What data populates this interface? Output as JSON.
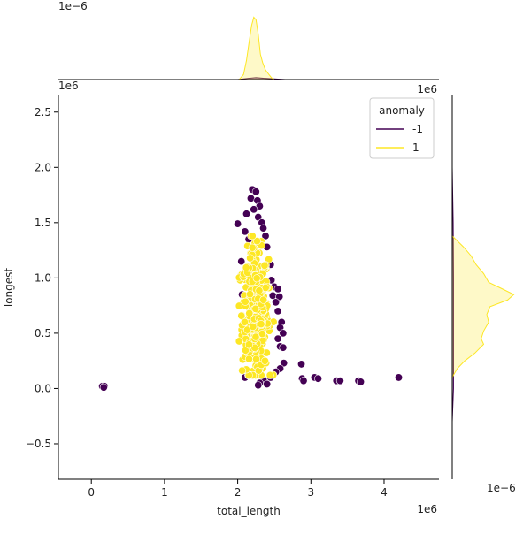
{
  "chart_data": [
    {
      "type": "scatter",
      "panel": "joint",
      "xlabel": "total_length",
      "ylabel": "longest",
      "x_offset_text": "1e6",
      "y_offset_text": "1e6",
      "xlim": [
        -0.45,
        4.75
      ],
      "ylim": [
        -0.82,
        2.65
      ],
      "x_ticks": [
        0,
        1,
        2,
        3,
        4
      ],
      "x_tick_labels": [
        "0",
        "1",
        "2",
        "3",
        "4"
      ],
      "y_ticks": [
        -0.5,
        0.0,
        0.5,
        1.0,
        1.5,
        2.0,
        2.5
      ],
      "y_tick_labels": [
        "−0.5",
        "0.0",
        "0.5",
        "1.0",
        "1.5",
        "2.0",
        "2.5"
      ],
      "legend": {
        "title": "anomaly",
        "placement": "top-right",
        "entries": [
          {
            "label": "-1",
            "color": "#440154"
          },
          {
            "label": "1",
            "color": "#fde725"
          }
        ]
      },
      "series": [
        {
          "name": "-1",
          "color": "#440154",
          "points": [
            [
              0.15,
              0.02
            ],
            [
              0.18,
              0.02
            ],
            [
              0.17,
              0.01
            ],
            [
              2.2,
              1.8
            ],
            [
              2.25,
              1.78
            ],
            [
              2.18,
              1.72
            ],
            [
              2.27,
              1.7
            ],
            [
              2.3,
              1.65
            ],
            [
              2.22,
              1.62
            ],
            [
              2.12,
              1.58
            ],
            [
              2.28,
              1.55
            ],
            [
              2.33,
              1.5
            ],
            [
              2.0,
              1.49
            ],
            [
              2.35,
              1.45
            ],
            [
              2.1,
              1.42
            ],
            [
              2.38,
              1.38
            ],
            [
              2.15,
              1.35
            ],
            [
              2.4,
              1.28
            ],
            [
              2.05,
              1.15
            ],
            [
              2.45,
              1.12
            ],
            [
              2.04,
              1.02
            ],
            [
              2.46,
              0.98
            ],
            [
              2.5,
              0.92
            ],
            [
              2.55,
              0.9
            ],
            [
              2.06,
              0.85
            ],
            [
              2.48,
              0.84
            ],
            [
              2.57,
              0.83
            ],
            [
              2.52,
              0.78
            ],
            [
              2.55,
              0.7
            ],
            [
              2.6,
              0.6
            ],
            [
              2.58,
              0.55
            ],
            [
              2.62,
              0.5
            ],
            [
              2.55,
              0.45
            ],
            [
              2.58,
              0.38
            ],
            [
              2.62,
              0.37
            ],
            [
              2.63,
              0.23
            ],
            [
              2.58,
              0.18
            ],
            [
              2.52,
              0.15
            ],
            [
              2.45,
              0.1
            ],
            [
              2.35,
              0.08
            ],
            [
              2.3,
              0.05
            ],
            [
              2.4,
              0.04
            ],
            [
              2.28,
              0.03
            ],
            [
              2.1,
              0.1
            ],
            [
              2.15,
              0.13
            ],
            [
              2.87,
              0.22
            ],
            [
              2.88,
              0.09
            ],
            [
              2.9,
              0.07
            ],
            [
              3.05,
              0.1
            ],
            [
              3.1,
              0.09
            ],
            [
              3.35,
              0.07
            ],
            [
              3.4,
              0.07
            ],
            [
              3.65,
              0.07
            ],
            [
              3.68,
              0.06
            ],
            [
              4.2,
              0.1
            ]
          ]
        },
        {
          "name": "1",
          "color": "#fde725",
          "cluster_x_range": [
            2.02,
            2.52
          ],
          "cluster_y_range": [
            0.12,
            1.38
          ],
          "cluster_x_center": 2.24,
          "cluster_y_center": 0.68,
          "count_estimate": 420
        }
      ]
    },
    {
      "type": "area",
      "panel": "marginal-x",
      "offset_text": "1e−6",
      "series": [
        {
          "name": "1",
          "color": "#fde725",
          "x": [
            2.02,
            2.08,
            2.12,
            2.16,
            2.19,
            2.22,
            2.25,
            2.28,
            2.31,
            2.34,
            2.38,
            2.42,
            2.46,
            2.5
          ],
          "density": [
            0.0,
            0.08,
            0.3,
            0.62,
            0.85,
            0.98,
            0.94,
            0.72,
            0.4,
            0.27,
            0.15,
            0.09,
            0.03,
            0.0
          ],
          "relative": true
        },
        {
          "name": "-1",
          "color": "#440154",
          "x": [
            2.0,
            2.15,
            2.25,
            2.35,
            2.5,
            2.65
          ],
          "density": [
            0.0,
            0.02,
            0.03,
            0.02,
            0.01,
            0.0
          ],
          "relative": true
        }
      ]
    },
    {
      "type": "area",
      "panel": "marginal-y",
      "offset_text": "1e−6",
      "series": [
        {
          "name": "1",
          "color": "#fde725",
          "y": [
            0.1,
            0.18,
            0.25,
            0.32,
            0.4,
            0.45,
            0.52,
            0.6,
            0.67,
            0.74,
            0.8,
            0.85,
            0.9,
            0.96,
            1.04,
            1.12,
            1.2,
            1.28,
            1.38
          ],
          "density": [
            0.0,
            0.08,
            0.2,
            0.36,
            0.5,
            0.46,
            0.5,
            0.58,
            0.55,
            0.6,
            0.88,
            0.98,
            0.8,
            0.58,
            0.5,
            0.38,
            0.3,
            0.18,
            0.0
          ],
          "relative": true
        },
        {
          "name": "-1",
          "color": "#440154",
          "y": [
            -0.3,
            0.0,
            0.5,
            1.0,
            1.5,
            2.0
          ],
          "density": [
            0.0,
            0.02,
            0.02,
            0.02,
            0.015,
            0.0
          ],
          "relative": true
        }
      ]
    }
  ]
}
